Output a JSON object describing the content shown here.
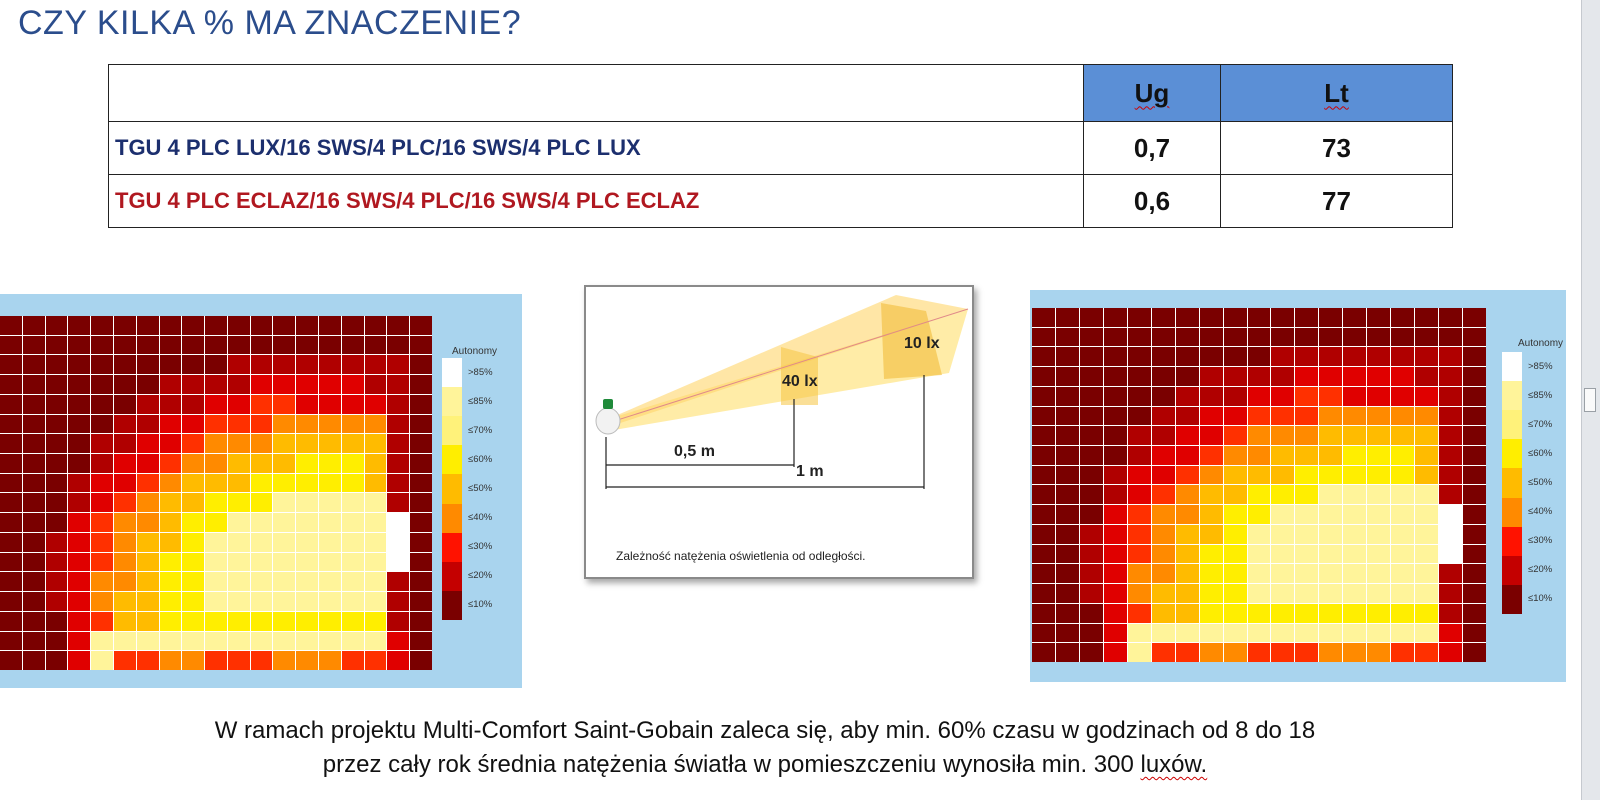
{
  "title": "CZY KILKA % MA ZNACZENIE?",
  "table": {
    "headers": [
      "",
      "Ug",
      "Lt"
    ],
    "rows": [
      {
        "name": "TGU 4 PLC LUX/16 SWS/4 PLC/16 SWS/4 PLC LUX",
        "ug": "0,7",
        "lt": "73",
        "color": "#1c2f6e"
      },
      {
        "name": "TGU 4 PLC ECLAZ/16 SWS/4 PLC/16 SWS/4 PLC ECLAZ",
        "ug": "0,6",
        "lt": "77",
        "color": "#b01820"
      }
    ],
    "header_color": "#5b8fd6"
  },
  "legend": {
    "title": "Autonomy",
    "labels": [
      ">85%",
      "≤85%",
      "≤70%",
      "≤60%",
      "≤50%",
      "≤40%",
      "≤30%",
      "≤20%",
      "≤10%"
    ],
    "colors": [
      "#ffffff",
      "#fff49a",
      "#fff27a",
      "#ffee00",
      "#ffbb00",
      "#ff8a00",
      "#ff1200",
      "#c40000",
      "#7a0000"
    ]
  },
  "diagram": {
    "labels": {
      "near": "40 lx",
      "far": "10 lx",
      "half_meter": "0,5 m",
      "one_meter": "1 m"
    },
    "caption": "Zależność natężenia oświetlenia od odległości.",
    "icon": "light-bulb-icon"
  },
  "bottom_text": {
    "line1": "W ramach projektu Multi-Comfort Saint-Gobain zaleca się, aby min. 60% czasu  w godzinach od 8 do 18",
    "line2_main": "przez cały rok średnia natężenia światła w pomieszczeniu wynosiła min. 300",
    "line2_unit": "luxów."
  },
  "heatmaps": {
    "left": [
      "8888888888888888888",
      "8888888888888888888",
      "8888888888777777778",
      "8888888777766666778",
      "8888887776655666678",
      "8888877665554444478",
      "8888776654443333378",
      "8888766544333222378",
      "8887665433322222378",
      "8887654332221111178",
      "8886544322111111108",
      "8876543321111111108",
      "8876543221111111108",
      "8876443221111111178",
      "8876433221111111178",
      "8886533222222222278",
      "8886111111111111168",
      "8886155445554445568"
    ],
    "right": [
      "8888888888888888888",
      "8888888888888888888",
      "8888888888777777778",
      "8888888777766666778",
      "8888887776655666678",
      "8888877665554444478",
      "8888776654443333378",
      "8888766544333222378",
      "8887665433322222378",
      "8887654332221111178",
      "8886544322111111108",
      "8876543321111111108",
      "8876543221111111108",
      "8876443221111111178",
      "8876433221111111178",
      "8886533222222222278",
      "8886111111111111168",
      "8886155445554445568"
    ]
  }
}
